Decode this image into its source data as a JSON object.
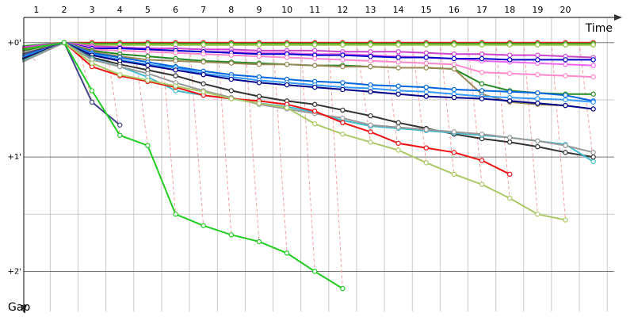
{
  "chart_data": {
    "type": "line",
    "xlabel": "Time",
    "ylabel": "Gap",
    "x_ticks": [
      1,
      2,
      3,
      4,
      5,
      6,
      7,
      8,
      9,
      10,
      11,
      12,
      13,
      14,
      15,
      16,
      17,
      18,
      19,
      20
    ],
    "y_ticks": [
      {
        "value": 0,
        "label": "+0'"
      },
      {
        "value": 1,
        "label": "+1'"
      },
      {
        "value": 2,
        "label": "+2'"
      }
    ],
    "xlim": [
      0.55,
      21.75
    ],
    "ylim": [
      -0.22,
      2.35
    ],
    "grid": true,
    "axis_color": "#333333",
    "grid_color": "#c8c8c8",
    "connector_color": "#f4a0a0",
    "series": [
      {
        "color": "#dd2222",
        "values": [
          0.05,
          0,
          0.0,
          0.0,
          0.0,
          0.0,
          0.0,
          0.0,
          0.0,
          0.0,
          0.0,
          0.0,
          0.0,
          0.0,
          0.0,
          0.0,
          0.0,
          0.0,
          0.0,
          0.0,
          0.0
        ]
      },
      {
        "color": "#22aa22",
        "values": [
          0.03,
          0,
          0.01,
          0.01,
          0.01,
          0.01,
          0.01,
          0.01,
          0.01,
          0.01,
          0.01,
          0.01,
          0.01,
          0.01,
          0.01,
          0.01,
          0.01,
          0.01,
          0.01,
          0.01,
          0.01
        ]
      },
      {
        "color": "#555555",
        "values": [
          0.04,
          0,
          0.02,
          0.02,
          0.02,
          0.02,
          0.02,
          0.02,
          0.02,
          0.02,
          0.02,
          0.02,
          0.02,
          0.02,
          0.02,
          0.02,
          0.02,
          0.02,
          0.02,
          0.02,
          0.02
        ]
      },
      {
        "color": "#99cc44",
        "values": [
          0.06,
          0,
          0.02,
          0.02,
          0.02,
          0.02,
          0.02,
          0.02,
          0.02,
          0.02,
          0.02,
          0.02,
          0.02,
          0.02,
          0.02,
          0.02,
          0.02,
          0.02,
          0.02,
          0.02,
          0.02
        ]
      },
      {
        "color": "#cc44cc",
        "values": [
          0.04,
          0,
          0.03,
          0.04,
          0.05,
          0.05,
          0.06,
          0.06,
          0.07,
          0.07,
          0.07,
          0.08,
          0.08,
          0.08,
          0.09,
          0.1,
          0.1,
          0.11,
          0.11,
          0.12,
          0.13
        ]
      },
      {
        "color": "#ee66ee",
        "values": [
          0.08,
          0,
          0.04,
          0.05,
          0.06,
          0.07,
          0.08,
          0.08,
          0.09,
          0.09,
          0.1,
          0.1,
          0.11,
          0.12,
          0.13,
          0.14,
          0.16,
          0.17,
          0.18,
          0.19,
          0.2
        ]
      },
      {
        "color": "#0000cc",
        "values": [
          0.09,
          0,
          0.05,
          0.05,
          0.06,
          0.07,
          0.08,
          0.09,
          0.1,
          0.1,
          0.11,
          0.11,
          0.12,
          0.13,
          0.13,
          0.14,
          0.14,
          0.15,
          0.15,
          0.15,
          0.15
        ]
      },
      {
        "color": "#ff88cc",
        "values": [
          0.1,
          0,
          0.06,
          0.07,
          0.08,
          0.09,
          0.1,
          0.11,
          0.12,
          0.13,
          0.14,
          0.15,
          0.16,
          0.17,
          0.18,
          0.19,
          0.26,
          0.27,
          0.28,
          0.29,
          0.3
        ]
      },
      {
        "color": "#228822",
        "values": [
          0.07,
          0,
          0.07,
          0.1,
          0.12,
          0.14,
          0.16,
          0.17,
          0.18,
          0.19,
          0.2,
          0.2,
          0.21,
          0.22,
          0.22,
          0.23,
          0.36,
          0.42,
          0.44,
          0.45,
          0.45
        ]
      },
      {
        "color": "#998855",
        "values": [
          0.11,
          0,
          0.08,
          0.12,
          0.15,
          0.16,
          0.17,
          0.18,
          0.19,
          0.19,
          0.2,
          0.21,
          0.21,
          0.22,
          0.22,
          0.23,
          0.45,
          0.52,
          0.54,
          0.55
        ]
      },
      {
        "color": "#0066dd",
        "values": [
          0.12,
          0,
          0.09,
          0.13,
          0.17,
          0.21,
          0.25,
          0.28,
          0.3,
          0.32,
          0.34,
          0.35,
          0.37,
          0.38,
          0.39,
          0.41,
          0.42,
          0.43,
          0.44,
          0.46,
          0.51
        ]
      },
      {
        "color": "#3399ff",
        "values": [
          0.13,
          0,
          0.1,
          0.15,
          0.19,
          0.22,
          0.27,
          0.3,
          0.33,
          0.35,
          0.37,
          0.39,
          0.4,
          0.42,
          0.43,
          0.45,
          0.47,
          0.48,
          0.49,
          0.5,
          0.52
        ]
      },
      {
        "color": "#000088",
        "values": [
          0.14,
          0,
          0.11,
          0.16,
          0.2,
          0.24,
          0.28,
          0.32,
          0.35,
          0.37,
          0.39,
          0.41,
          0.43,
          0.45,
          0.47,
          0.48,
          0.49,
          0.51,
          0.53,
          0.55,
          0.58
        ]
      },
      {
        "color": "#333333",
        "values": [
          0.15,
          0,
          0.13,
          0.19,
          0.24,
          0.29,
          0.36,
          0.42,
          0.47,
          0.51,
          0.54,
          0.59,
          0.64,
          0.7,
          0.75,
          0.8,
          0.84,
          0.87,
          0.91,
          0.96,
          1.0
        ]
      },
      {
        "color": "#44bbcc",
        "values": [
          0.16,
          0,
          0.14,
          0.21,
          0.3,
          0.42,
          0.46,
          0.49,
          0.53,
          0.56,
          0.61,
          0.68,
          0.73,
          0.75,
          0.77,
          0.79,
          0.81,
          0.83,
          0.86,
          0.89,
          1.04
        ]
      },
      {
        "color": "#999999",
        "values": [
          0.17,
          0,
          0.15,
          0.21,
          0.27,
          0.35,
          0.42,
          0.48,
          0.54,
          0.58,
          0.62,
          0.66,
          0.72,
          0.74,
          0.76,
          0.78,
          0.8,
          0.83,
          0.86,
          0.9,
          0.96
        ]
      },
      {
        "color": "#ee1111",
        "values": [
          0.06,
          0,
          0.21,
          0.29,
          0.34,
          0.39,
          0.46,
          0.49,
          0.51,
          0.54,
          0.6,
          0.7,
          0.78,
          0.88,
          0.92,
          0.96,
          1.03,
          1.15
        ]
      },
      {
        "color": "#aac866",
        "values": [
          0.09,
          0,
          0.18,
          0.28,
          0.33,
          0.38,
          0.43,
          0.49,
          0.53,
          0.57,
          0.71,
          0.8,
          0.87,
          0.94,
          1.05,
          1.15,
          1.24,
          1.36,
          1.5,
          1.55
        ]
      },
      {
        "color": "#444488",
        "values": [
          0.1,
          0,
          0.52,
          0.72
        ]
      },
      {
        "color": "#22cc22",
        "values": [
          0.06,
          0,
          0.42,
          0.81,
          0.9,
          1.5,
          1.6,
          1.68,
          1.74,
          1.84,
          2.0,
          2.15
        ]
      }
    ]
  }
}
